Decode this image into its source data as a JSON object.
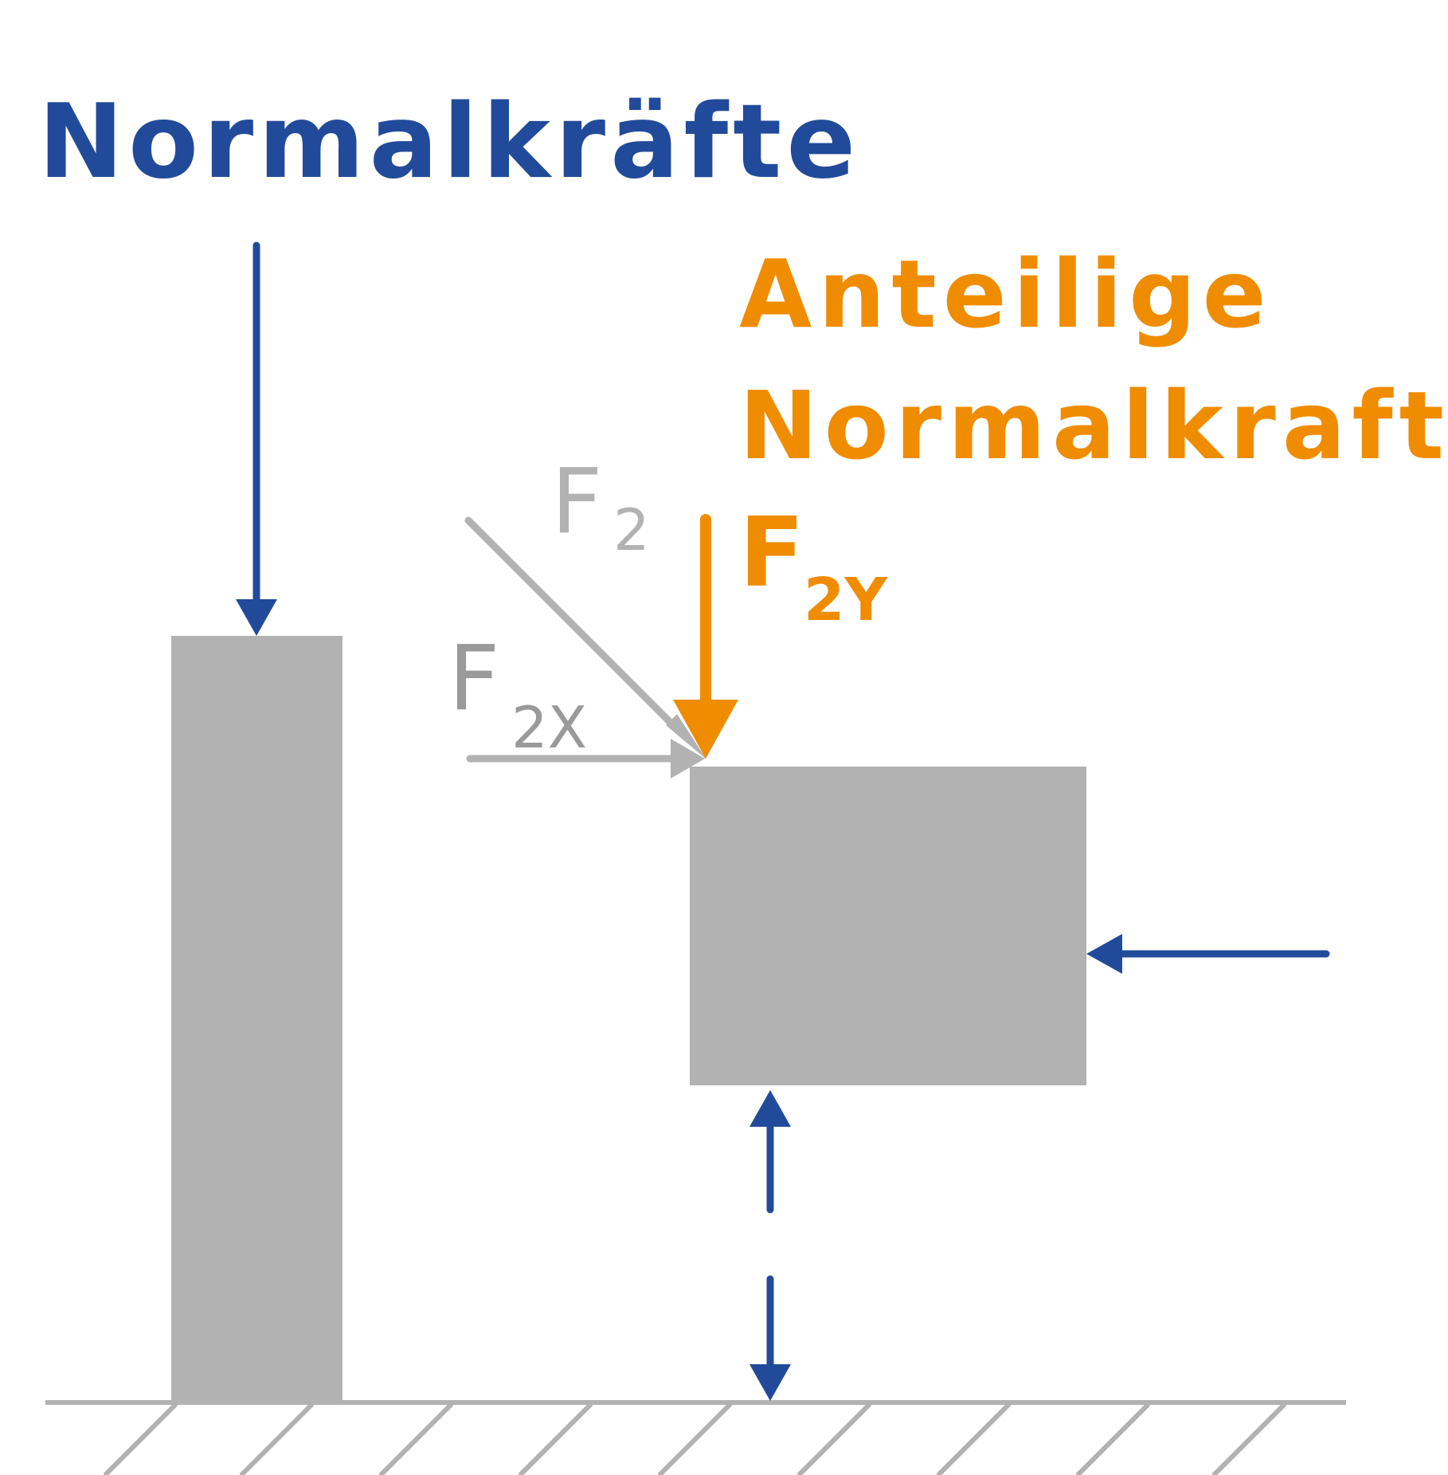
{
  "title": "Normalkräfte",
  "highlight": {
    "line1": "Anteilige",
    "line2": "Normalkraft"
  },
  "forces": {
    "f2": {
      "main": "F",
      "sub": "2"
    },
    "f2x": {
      "main": "F",
      "sub": "2X"
    },
    "f2y": {
      "main": "F",
      "sub": "2Y"
    }
  },
  "colors": {
    "blue": "#214b9a",
    "orange": "#f08c00",
    "block_gray": "#b2b2b2",
    "force_gray": "#b2b2b2",
    "label_gray": "#9a9a9a",
    "ground_gray": "#b2b2b2"
  }
}
